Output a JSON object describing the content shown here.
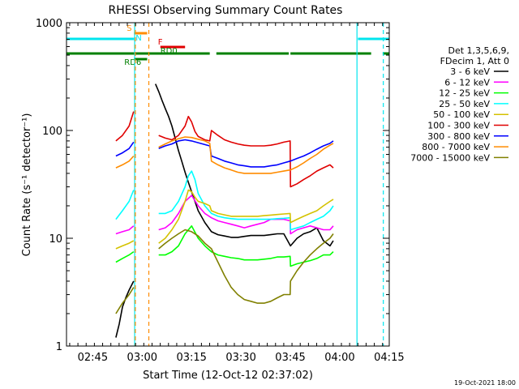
{
  "chart_data": {
    "type": "line",
    "title": "RHESSI Observing Summary Count Rates",
    "xlabel": "Start Time (12-Oct-12 02:37:02)",
    "ylabel": "Count Rate (s⁻¹ detector⁻¹)",
    "yscale": "log",
    "ylim": [
      1,
      1000
    ],
    "xlim_minutes": [
      0,
      98
    ],
    "x_tick_labels": [
      {
        "label": "02:45",
        "minute": 7.97
      },
      {
        "label": "03:00",
        "minute": 22.97
      },
      {
        "label": "03:15",
        "minute": 37.97
      },
      {
        "label": "03:30",
        "minute": 52.97
      },
      {
        "label": "03:45",
        "minute": 67.97
      },
      {
        "label": "04:00",
        "minute": 82.97
      },
      {
        "label": "04:15",
        "minute": 97.97
      }
    ],
    "y_tick_labels": [
      {
        "label": "1",
        "value": 1
      },
      {
        "label": "10",
        "value": 10
      },
      {
        "label": "100",
        "value": 100
      },
      {
        "label": "1000",
        "value": 1000
      }
    ],
    "legend_header": [
      "Det 1,3,5,6,9,",
      "FDecim 1, Att 0"
    ],
    "legend_position": "right",
    "timestamp": "19-Oct-2021 18:00",
    "flags": [
      {
        "label": "S",
        "color": "#ff8c00",
        "segments": [
          [
            20.5,
            24.5
          ]
        ]
      },
      {
        "label": "N",
        "color": "#00e5ee",
        "segments": [
          [
            0,
            20.5
          ],
          [
            88.5,
            98
          ]
        ]
      },
      {
        "label": "F",
        "color": "#e00000",
        "segments": [
          [
            28.5,
            36.0
          ]
        ]
      },
      {
        "label": "RD0",
        "color": "#008000",
        "segments": [
          [
            0,
            43.5
          ],
          [
            45.5,
            67.5
          ],
          [
            68.0,
            92.5
          ],
          [
            96.0,
            98
          ]
        ]
      },
      {
        "label": "RD6",
        "color": "#008000",
        "segments": [
          [
            20.5,
            24.5
          ]
        ]
      }
    ],
    "vlines": [
      {
        "minute": 20.7,
        "color": "#00e5ee",
        "style": "solid"
      },
      {
        "minute": 20.9,
        "color": "#ff8c00",
        "style": "dashed"
      },
      {
        "minute": 25.0,
        "color": "#ff8c00",
        "style": "dashed"
      },
      {
        "minute": 88.2,
        "color": "#00e5ee",
        "style": "solid"
      },
      {
        "minute": 96.2,
        "color": "#00e5ee",
        "style": "dashed"
      }
    ],
    "series": [
      {
        "name": "3 - 6 keV",
        "color": "#000000",
        "x": [
          15,
          16,
          17,
          18,
          19,
          20.4,
          21,
          26,
          27,
          28,
          29,
          30,
          31,
          32,
          33,
          34,
          35,
          36,
          37,
          38,
          39,
          40,
          42,
          44,
          46,
          48,
          50,
          52,
          54,
          56,
          58,
          60,
          62,
          64,
          66,
          68,
          70,
          72,
          74,
          76,
          78,
          80,
          81
        ],
        "y": [
          1.2,
          1.6,
          2.3,
          2.8,
          3.3,
          4.0,
          null,
          null,
          270,
          230,
          190,
          160,
          135,
          110,
          85,
          65,
          52,
          41,
          33,
          27,
          22,
          18,
          14,
          11.5,
          10.8,
          10.5,
          10.2,
          10.2,
          10.4,
          10.6,
          10.6,
          10.6,
          10.8,
          11,
          11,
          8.5,
          10,
          11,
          11.5,
          12.5,
          9.5,
          8.5,
          9.5
        ]
      },
      {
        "name": "6 - 12 keV",
        "color": "#ff00ff",
        "x": [
          15,
          17,
          19,
          20.4,
          21,
          26,
          28,
          30,
          32,
          34,
          36,
          38,
          40,
          42,
          44,
          46,
          48,
          50,
          52,
          54,
          56,
          58,
          60,
          62,
          64,
          66,
          67.9,
          68,
          70,
          72,
          74,
          76,
          78,
          80,
          81
        ],
        "y": [
          11,
          11.5,
          12,
          13,
          null,
          null,
          12,
          12.5,
          14,
          17,
          22,
          25,
          20,
          17,
          15.5,
          14.5,
          14,
          13.5,
          13,
          12.5,
          13,
          13.5,
          14,
          15,
          15,
          15,
          14.5,
          11,
          12,
          12.5,
          13,
          12.5,
          12,
          12,
          13
        ]
      },
      {
        "name": "12 - 25 keV",
        "color": "#00ff00",
        "x": [
          15,
          17,
          19,
          20.4,
          21,
          26,
          28,
          30,
          32,
          34,
          36,
          38,
          40,
          42,
          44,
          46,
          48,
          50,
          52,
          54,
          56,
          58,
          60,
          62,
          64,
          66,
          67.9,
          68,
          70,
          72,
          74,
          76,
          78,
          80,
          81
        ],
        "y": [
          6,
          6.5,
          7,
          7.5,
          null,
          null,
          7,
          7,
          7.5,
          8.5,
          11,
          13,
          10,
          8.5,
          7.5,
          7,
          6.8,
          6.6,
          6.5,
          6.3,
          6.3,
          6.3,
          6.4,
          6.5,
          6.7,
          6.7,
          6.8,
          5.5,
          5.8,
          6,
          6.2,
          6.5,
          7,
          7,
          7.5
        ]
      },
      {
        "name": "25 - 50 keV",
        "color": "#00ffff",
        "x": [
          15,
          17,
          19,
          20.4,
          21,
          26,
          28,
          30,
          32,
          34,
          36,
          37,
          38,
          39,
          40,
          42,
          44,
          46,
          48,
          50,
          52,
          54,
          56,
          58,
          60,
          62,
          64,
          66,
          67.9,
          68,
          70,
          72,
          74,
          76,
          78,
          80,
          81
        ],
        "y": [
          15,
          18,
          22,
          28,
          null,
          null,
          17,
          17,
          18,
          22,
          30,
          38,
          42,
          35,
          26,
          20,
          17,
          16,
          15.5,
          15.2,
          15,
          15,
          15,
          15,
          15,
          15,
          15.2,
          15.3,
          15.5,
          12,
          12.5,
          13,
          14,
          15,
          16,
          18,
          20
        ]
      },
      {
        "name": "50 - 100 keV",
        "color": "#d4c200",
        "x": [
          15,
          17,
          19,
          20.4,
          21,
          26,
          28,
          30,
          32,
          34,
          36,
          37,
          38,
          39,
          40,
          42,
          43.5,
          44,
          46,
          48,
          50,
          52,
          54,
          56,
          58,
          60,
          62,
          64,
          66,
          67.9,
          68,
          70,
          72,
          74,
          76,
          78,
          80,
          81
        ],
        "y": [
          8,
          8.5,
          9,
          9.5,
          null,
          null,
          9,
          10,
          12,
          15,
          22,
          28,
          27,
          24,
          22,
          21,
          20,
          18,
          17,
          16.5,
          16,
          16,
          16,
          16,
          16,
          16.2,
          16.4,
          16.6,
          16.8,
          17,
          14,
          15,
          16,
          17,
          18,
          20,
          22,
          23
        ]
      },
      {
        "name": "100 - 300 keV",
        "color": "#e00000",
        "x": [
          15,
          17,
          19,
          20.4,
          21,
          26,
          28,
          30,
          32,
          34,
          36,
          37,
          38,
          39,
          40,
          42,
          43.5,
          44,
          46,
          48,
          50,
          52,
          54,
          56,
          58,
          60,
          62,
          64,
          66,
          67.9,
          68,
          70,
          72,
          74,
          76,
          78,
          80,
          81
        ],
        "y": [
          80,
          90,
          110,
          150,
          null,
          null,
          90,
          85,
          82,
          90,
          110,
          135,
          120,
          98,
          88,
          82,
          80,
          100,
          90,
          82,
          78,
          75,
          73,
          72,
          72,
          72,
          73,
          75,
          78,
          80,
          30,
          32,
          35,
          38,
          42,
          45,
          48,
          45
        ]
      },
      {
        "name": "300 - 800 keV",
        "color": "#0000ff",
        "x": [
          15,
          17,
          19,
          20.4,
          21,
          26,
          28,
          30,
          32,
          34,
          36,
          38,
          40,
          42,
          43.5,
          44,
          46,
          48,
          50,
          52,
          54,
          56,
          58,
          60,
          62,
          64,
          66,
          67.9,
          68,
          70,
          72,
          74,
          76,
          78,
          80,
          81
        ],
        "y": [
          58,
          62,
          68,
          78,
          null,
          null,
          68,
          72,
          75,
          80,
          82,
          80,
          77,
          74,
          72,
          58,
          55,
          52,
          50,
          48,
          47,
          46,
          46,
          46,
          47,
          48,
          50,
          52,
          52,
          55,
          58,
          62,
          67,
          72,
          76,
          80
        ]
      },
      {
        "name": "800 - 7000 keV",
        "color": "#ff8c00",
        "x": [
          15,
          17,
          19,
          20.4,
          21,
          26,
          28,
          30,
          32,
          34,
          36,
          38,
          40,
          42,
          43.5,
          44,
          46,
          48,
          50,
          52,
          54,
          56,
          58,
          60,
          62,
          64,
          66,
          67.9,
          68,
          70,
          72,
          74,
          76,
          78,
          80,
          81
        ],
        "y": [
          45,
          48,
          52,
          58,
          null,
          null,
          70,
          75,
          80,
          84,
          87,
          86,
          83,
          80,
          76,
          52,
          48,
          45,
          43,
          41,
          40,
          40,
          40,
          40,
          40,
          41,
          42,
          43,
          43,
          46,
          50,
          55,
          60,
          67,
          73,
          76
        ]
      },
      {
        "name": "7000 - 15000 keV",
        "color": "#808000",
        "x": [
          15,
          17,
          19,
          20.4,
          21,
          26,
          28,
          30,
          32,
          34,
          36,
          38,
          40,
          42,
          44,
          46,
          48,
          50,
          52,
          54,
          56,
          58,
          60,
          62,
          64,
          66,
          67.9,
          68,
          70,
          72,
          74,
          76,
          78,
          80,
          81
        ],
        "y": [
          2,
          2.5,
          3,
          3.5,
          null,
          null,
          8,
          9,
          10,
          11,
          12,
          11.5,
          10.5,
          9,
          8,
          6,
          4.5,
          3.5,
          3,
          2.7,
          2.6,
          2.5,
          2.5,
          2.6,
          2.8,
          3,
          3,
          4,
          5,
          6,
          7,
          8,
          9,
          10,
          11
        ]
      }
    ]
  }
}
